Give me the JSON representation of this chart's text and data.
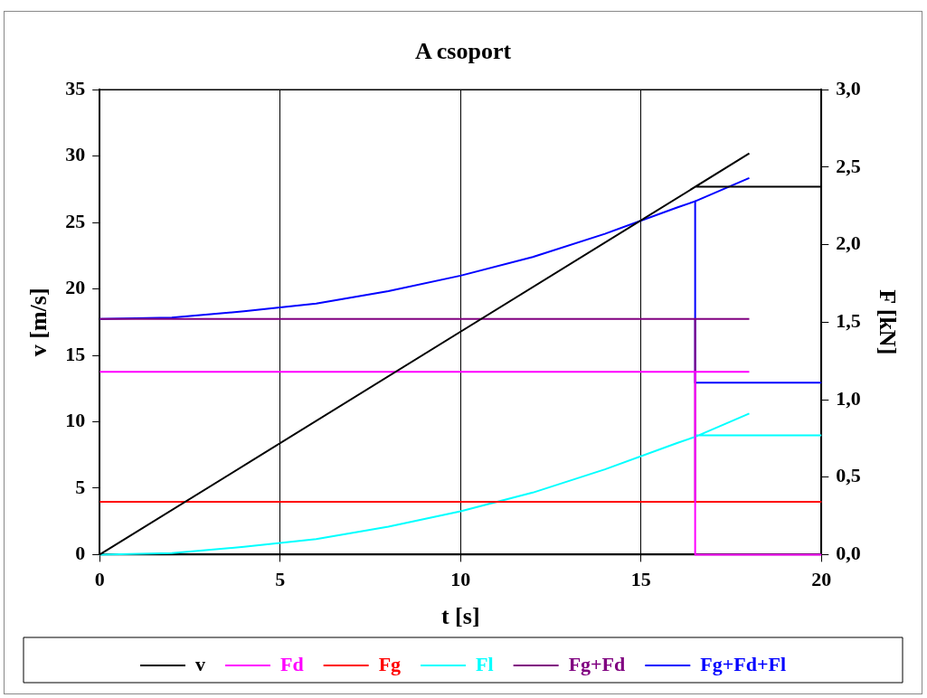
{
  "chart_data": {
    "type": "line",
    "title": "A csoport",
    "xlabel": "t [s]",
    "ylabel": "v [m/s]",
    "y2label": "F [kN]",
    "xlim": [
      0,
      20
    ],
    "xticks": [
      0,
      5,
      10,
      15,
      20
    ],
    "ylim": [
      0,
      35
    ],
    "yticks": [
      0,
      5,
      10,
      15,
      20,
      25,
      30,
      35
    ],
    "y2lim": [
      0,
      3.0
    ],
    "y2ticks": [
      {
        "value": 0,
        "label": "0,0"
      },
      {
        "value": 0.5,
        "label": "0,5"
      },
      {
        "value": 1,
        "label": "1,0"
      },
      {
        "value": 1.5,
        "label": "1,5"
      },
      {
        "value": 2,
        "label": "2,0"
      },
      {
        "value": 2.5,
        "label": "2,5"
      },
      {
        "value": 3,
        "label": "3,0"
      }
    ],
    "grid": "x",
    "legend": "bottom",
    "series": [
      {
        "name": "v",
        "color": "#000000",
        "x": [
          0,
          18,
          null,
          16.5,
          20
        ],
        "values": [
          0,
          30.2,
          null,
          27.7,
          27.7
        ]
      },
      {
        "name": "Fd",
        "color": "#ff00ff",
        "axis": "y2",
        "x": [
          0,
          18,
          null,
          16.5,
          16.5,
          20
        ],
        "values": [
          1.18,
          1.18,
          null,
          1.18,
          0,
          0
        ]
      },
      {
        "name": "Fg",
        "color": "#ff0000",
        "axis": "y2",
        "x": [
          0,
          20
        ],
        "values": [
          0.34,
          0.34
        ]
      },
      {
        "name": "Fl",
        "color": "#00ffff",
        "axis": "y2",
        "x": [
          0,
          2,
          4,
          6,
          8,
          10,
          12,
          14,
          16,
          16.5,
          18,
          null,
          16.5,
          20
        ],
        "values": [
          0,
          0.01,
          0.05,
          0.1,
          0.18,
          0.28,
          0.4,
          0.55,
          0.72,
          0.76,
          0.91,
          null,
          0.77,
          0.77
        ]
      },
      {
        "name": "Fg+Fd",
        "color": "#800080",
        "axis": "y2",
        "x": [
          0,
          18,
          null,
          16.5,
          16.5,
          20
        ],
        "values": [
          1.52,
          1.52,
          null,
          1.52,
          0.34,
          0.34
        ]
      },
      {
        "name": "Fg+Fd+Fl",
        "color": "#0000ff",
        "axis": "y2",
        "x": [
          0,
          2,
          4,
          6,
          8,
          10,
          12,
          14,
          16,
          16.5,
          18,
          null,
          16.5,
          16.5,
          20
        ],
        "values": [
          1.52,
          1.53,
          1.57,
          1.62,
          1.7,
          1.8,
          1.92,
          2.07,
          2.24,
          2.28,
          2.43,
          null,
          2.28,
          1.11,
          1.11
        ]
      }
    ]
  }
}
